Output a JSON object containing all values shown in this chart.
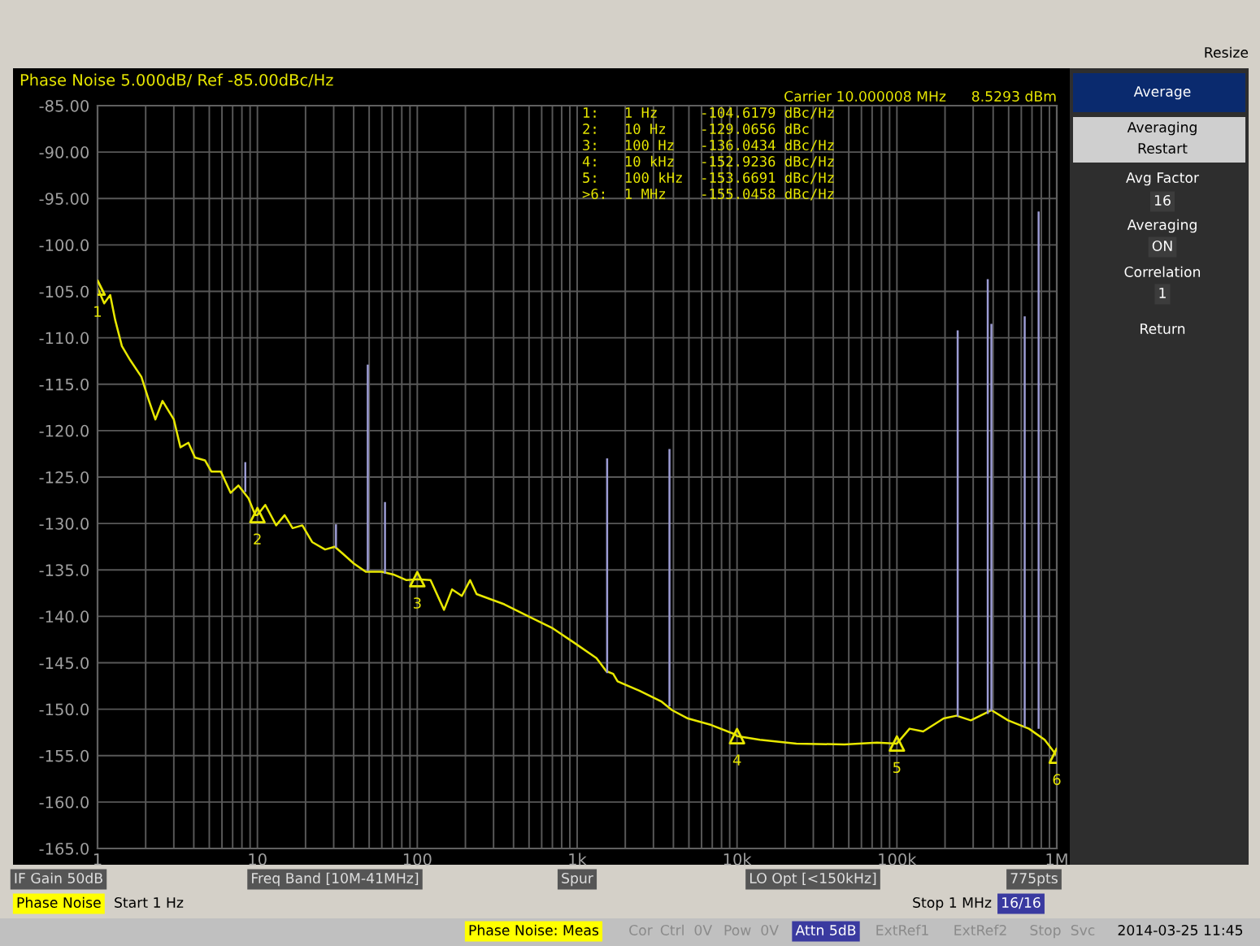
{
  "chart_data": {
    "type": "line",
    "title": "Phase Noise 5.000dB/ Ref -85.00dBc/Hz",
    "log": "x",
    "grid": true,
    "legend": false,
    "xlim": [
      1,
      1000000
    ],
    "xticks": [
      {
        "value": 1,
        "label": "1"
      },
      {
        "value": 10,
        "label": "10"
      },
      {
        "value": 100,
        "label": "100"
      },
      {
        "value": 1000,
        "label": "1k"
      },
      {
        "value": 10000,
        "label": "10k"
      },
      {
        "value": 100000,
        "label": "100k"
      },
      {
        "value": 1000000,
        "label": "1M"
      }
    ],
    "ylim": [
      -165,
      -85
    ],
    "yticks": [
      {
        "value": -85,
        "label": "-85.00"
      },
      {
        "value": -90,
        "label": "-90.00"
      },
      {
        "value": -95,
        "label": "-95.00"
      },
      {
        "value": -100,
        "label": "-100.0"
      },
      {
        "value": -105,
        "label": "-105.0"
      },
      {
        "value": -110,
        "label": "-110.0"
      },
      {
        "value": -115,
        "label": "-115.0"
      },
      {
        "value": -120,
        "label": "-120.0"
      },
      {
        "value": -125,
        "label": "-125.0"
      },
      {
        "value": -130,
        "label": "-130.0"
      },
      {
        "value": -135,
        "label": "-135.0"
      },
      {
        "value": -140,
        "label": "-140.0"
      },
      {
        "value": -145,
        "label": "-145.0"
      },
      {
        "value": -150,
        "label": "-150.0"
      },
      {
        "value": -155,
        "label": "-155.0"
      },
      {
        "value": -160,
        "label": "-160.0"
      },
      {
        "value": -165,
        "label": "-165.0"
      }
    ],
    "series": [
      {
        "color": "#e8e800",
        "x": [
          1,
          1.1,
          1.2,
          1.29,
          1.42,
          1.6,
          1.88,
          2.1,
          2.3,
          2.55,
          3.0,
          3.3,
          3.7,
          4.07,
          4.7,
          5.15,
          5.9,
          6.8,
          7.6,
          8.8,
          9.7,
          10,
          11.2,
          13.1,
          14.8,
          16.6,
          19.1,
          22,
          26.5,
          30.5,
          35,
          40,
          47.6,
          60,
          71,
          85.6,
          100,
          121,
          147,
          165,
          190,
          214,
          235,
          350,
          470,
          705,
          950,
          1320,
          1520,
          1680,
          1790,
          2450,
          3380,
          3920,
          4930,
          6900,
          9700,
          10000,
          13900,
          23500,
          47000,
          75000,
          100000,
          120000,
          146000,
          196000,
          236000,
          290000,
          390000,
          496000,
          670000,
          840000,
          1000000
        ],
        "values": [
          -104.6,
          -106.3,
          -105.4,
          -108.1,
          -110.9,
          -112.4,
          -114.2,
          -116.8,
          -118.8,
          -116.8,
          -118.8,
          -121.8,
          -121.3,
          -122.9,
          -123.2,
          -124.4,
          -124.4,
          -126.7,
          -125.9,
          -127.3,
          -129.1,
          -129.1,
          -128.0,
          -130.2,
          -129.1,
          -130.5,
          -130.2,
          -132.0,
          -132.8,
          -132.5,
          -133.4,
          -134.3,
          -135.2,
          -135.2,
          -135.5,
          -136.1,
          -136.0,
          -136.1,
          -139.3,
          -137.1,
          -137.8,
          -136.1,
          -137.6,
          -138.7,
          -139.8,
          -141.3,
          -142.8,
          -144.5,
          -145.9,
          -146.2,
          -147.0,
          -148.0,
          -149.2,
          -150.1,
          -151.0,
          -151.7,
          -152.7,
          -152.9,
          -153.3,
          -153.7,
          -153.8,
          -153.6,
          -153.7,
          -152.1,
          -152.4,
          -151.0,
          -150.7,
          -151.2,
          -150.1,
          -151.2,
          -152.1,
          -153.3,
          -155.0
        ]
      },
      {
        "color": "#9c9cd4",
        "x": [
          8.4,
          8.4
        ],
        "values": [
          -126.5,
          -123.5
        ]
      },
      {
        "color": "#9c9cd4",
        "x": [
          31,
          31
        ],
        "values": [
          -132.5,
          -130.2
        ]
      },
      {
        "color": "#9c9cd4",
        "x": [
          49,
          49
        ],
        "values": [
          -135.0,
          -113.0
        ]
      },
      {
        "color": "#9c9cd4",
        "x": [
          62.8,
          62.8
        ],
        "values": [
          -135.3,
          -127.8
        ]
      },
      {
        "color": "#9c9cd4",
        "x": [
          1540,
          1540
        ],
        "values": [
          -146.0,
          -123.1
        ]
      },
      {
        "color": "#9c9cd4",
        "x": [
          3780,
          3780
        ],
        "values": [
          -149.6,
          -122.1
        ]
      },
      {
        "color": "#9c9cd4",
        "x": [
          240000,
          240000
        ],
        "values": [
          -150.7,
          -109.3
        ]
      },
      {
        "color": "#9c9cd4",
        "x": [
          370000,
          370000
        ],
        "values": [
          -150.4,
          -103.8
        ]
      },
      {
        "color": "#9c9cd4",
        "x": [
          390000,
          390000
        ],
        "values": [
          -150.1,
          -108.6
        ]
      },
      {
        "color": "#9c9cd4",
        "x": [
          630000,
          630000
        ],
        "values": [
          -151.8,
          -107.8
        ]
      },
      {
        "color": "#9c9cd4",
        "x": [
          770000,
          770000
        ],
        "values": [
          -152.0,
          -96.5
        ]
      },
      {
        "type": "scatter",
        "color": "#e8e800",
        "marker": "triangle",
        "x": [
          1,
          10,
          100,
          10000,
          100000,
          1000000
        ],
        "values": [
          -104.6,
          -129.1,
          -136.0,
          -152.9,
          -153.7,
          -155.0
        ]
      }
    ],
    "annotations": [
      {
        "text": "1",
        "x": 1,
        "y": -104.6
      },
      {
        "text": "2",
        "x": 10,
        "y": -129.1
      },
      {
        "text": "3",
        "x": 100,
        "y": -136.0
      },
      {
        "text": "4",
        "x": 10000,
        "y": -152.9
      },
      {
        "text": "5",
        "x": 100000,
        "y": -153.7
      },
      {
        "text": "6",
        "x": 1000000,
        "y": -155.0
      },
      "Carrier 10.000008 MHz",
      "8.5293 dBm",
      "1:   1 Hz     -104.6179 dBc/Hz",
      "2:   10 Hz    -129.0656 dBc",
      "3:   100 Hz   -136.0434 dBc/Hz",
      "4:   10 kHz   -152.9236 dBc/Hz",
      "5:   100 kHz  -153.6691 dBc/Hz",
      ">6:  1 MHz    -155.0458 dBc/Hz",
      "IF Gain 50dB",
      "Freq Band [10M-41MHz]",
      "Spur",
      "LO Opt [<150kHz]",
      "775pts",
      "Phase Noise",
      "Start 1 Hz",
      "Stop 1 MHz",
      "16/16",
      "Phase Noise: Meas",
      "Cor",
      "Ctrl  0V",
      "Pow  0V",
      "Attn 5dB",
      "ExtRef1",
      "ExtRef2",
      "Stop",
      "Svc",
      "2014-03-25 11:45",
      "Resize",
      "Average",
      "Averaging",
      "Restart",
      "Avg Factor",
      "16",
      "Averaging",
      "ON",
      "Correlation",
      "1",
      "Return"
    ]
  }
}
